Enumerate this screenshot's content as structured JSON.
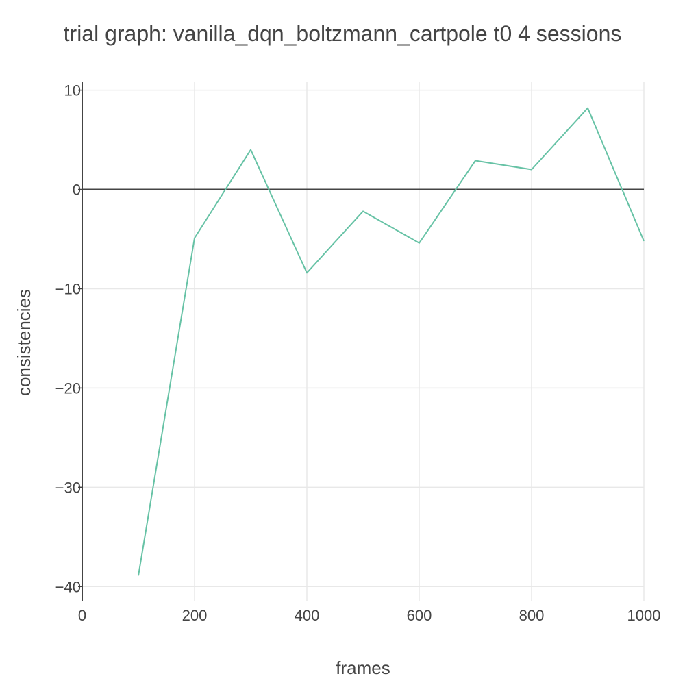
{
  "chart_data": {
    "type": "line",
    "title": "trial graph: vanilla_dqn_boltzmann_cartpole t0 4 sessions",
    "xlabel": "frames",
    "ylabel": "consistencies",
    "xlim": [
      0,
      1000
    ],
    "ylim": [
      -41.5,
      10.8
    ],
    "x_ticks": [
      0,
      200,
      400,
      600,
      800,
      1000
    ],
    "y_ticks": [
      10,
      0,
      -10,
      -20,
      -30,
      -40
    ],
    "x_tick_labels": [
      "0",
      "200",
      "400",
      "600",
      "800",
      "1000"
    ],
    "y_tick_labels": [
      "10",
      "0",
      "−10",
      "−20",
      "−30",
      "−40"
    ],
    "grid": true,
    "series": [
      {
        "color": "#66c2a5",
        "x": [
          100,
          200,
          300,
          400,
          500,
          600,
          700,
          800,
          900,
          1000
        ],
        "values": [
          -38.9,
          -4.9,
          4.0,
          -8.4,
          -2.2,
          -5.4,
          2.9,
          2.0,
          8.2,
          -5.2
        ]
      }
    ]
  }
}
